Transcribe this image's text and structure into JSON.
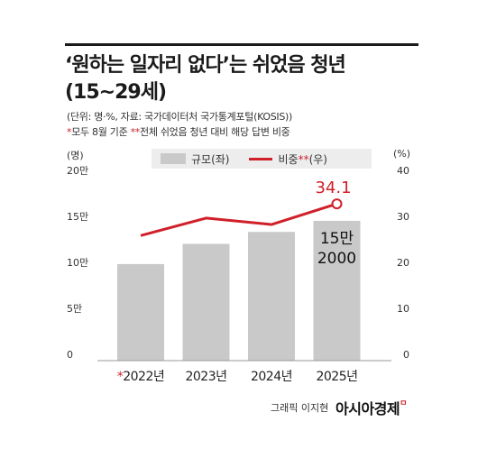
{
  "title_line1": "‘원하는 일자리 없다’는 쉬었음 청년",
  "title_line2": "(15~29세)",
  "source": "(단위: 명·%, 자료: 국가데이터처 국가통계포털(KOSIS))",
  "note_star1": "*",
  "note1": "모두 8월 기준",
  "note_star2": "**",
  "note2": "전체 쉬었음 청년 대비 해당 답변 비중",
  "unit_left": "(명)",
  "unit_right": "(%)",
  "legend": {
    "bar_label": "규모(좌)",
    "line_label_a": "비중",
    "line_label_star": "**",
    "line_label_b": "(우)"
  },
  "colors": {
    "bar": "#c9c9c9",
    "line": "#d0202a",
    "axis": "#999999"
  },
  "chart_data": {
    "type": "bar+line",
    "categories": [
      "2022년",
      "2023년",
      "2024년",
      "2025년"
    ],
    "category_marks": [
      "*",
      "",
      "",
      ""
    ],
    "series": [
      {
        "name": "규모(좌)",
        "type": "bar",
        "axis": "left",
        "values": [
          105000,
          127000,
          140000,
          152000
        ]
      },
      {
        "name": "비중**(우)",
        "type": "line",
        "axis": "right",
        "values": [
          27.2,
          31.0,
          29.6,
          34.1
        ]
      }
    ],
    "left_axis": {
      "ticks": [
        "0",
        "5만",
        "10만",
        "15만",
        "20만"
      ],
      "min": 0,
      "max": 200000
    },
    "right_axis": {
      "ticks": [
        "0",
        "10",
        "20",
        "30",
        "40"
      ],
      "min": 0,
      "max": 40
    },
    "annotations": {
      "line_last": "34.1",
      "bar_last_line1": "15만",
      "bar_last_line2": "2000"
    },
    "grid": false
  },
  "credit": "그래픽 이지현",
  "brand": "아시아경제",
  "brand_mark": "ㅁ"
}
